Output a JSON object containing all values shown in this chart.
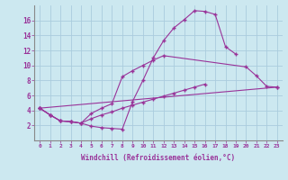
{
  "line1_x": [
    0,
    1,
    2,
    3,
    4,
    5,
    6,
    7,
    8,
    9,
    10,
    11,
    12,
    13,
    14,
    15,
    16,
    17,
    18,
    19,
    20,
    21,
    22,
    23
  ],
  "line1_y": [
    4.3,
    3.4,
    2.6,
    2.5,
    2.3,
    1.9,
    1.7,
    1.6,
    1.5,
    5.2,
    8.0,
    11.0,
    13.3,
    15.0,
    16.1,
    17.3,
    17.2,
    16.8,
    12.5,
    11.5,
    null,
    null,
    null,
    null
  ],
  "line2_x": [
    0,
    1,
    2,
    3,
    4,
    5,
    6,
    7,
    8,
    9,
    10,
    11,
    12,
    13,
    14,
    15,
    16,
    17,
    18,
    19,
    20,
    21,
    22,
    23
  ],
  "line2_y": [
    4.3,
    3.4,
    2.6,
    2.5,
    2.3,
    3.6,
    4.3,
    4.9,
    8.5,
    9.3,
    10.0,
    10.7,
    11.3,
    null,
    null,
    null,
    null,
    null,
    null,
    null,
    9.8,
    8.6,
    7.2,
    7.1
  ],
  "line3_x": [
    0,
    1,
    2,
    3,
    4,
    5,
    6,
    7,
    8,
    9,
    10,
    11,
    12,
    13,
    14,
    15,
    16,
    17,
    18,
    19,
    20,
    21,
    22,
    23
  ],
  "line3_y": [
    4.3,
    3.4,
    2.6,
    2.5,
    2.3,
    2.9,
    3.4,
    3.8,
    4.3,
    4.7,
    5.1,
    5.5,
    5.9,
    6.3,
    6.7,
    7.1,
    7.5,
    null,
    null,
    null,
    null,
    null,
    null,
    null
  ],
  "line4_x": [
    0,
    1,
    2,
    3,
    4,
    5,
    6,
    7,
    8,
    9,
    10,
    11,
    12,
    13,
    14,
    15,
    16,
    17,
    18,
    19,
    20,
    21,
    22,
    23
  ],
  "line4_y": [
    4.3,
    null,
    null,
    null,
    null,
    null,
    null,
    null,
    null,
    null,
    null,
    null,
    null,
    null,
    null,
    null,
    null,
    null,
    null,
    null,
    null,
    null,
    null,
    7.1
  ],
  "line_color": "#993399",
  "bg_color": "#cce8f0",
  "grid_color": "#aaccdd",
  "xlabel": "Windchill (Refroidissement éolien,°C)",
  "xlim": [
    -0.5,
    23.5
  ],
  "ylim": [
    0,
    18
  ],
  "yticks": [
    2,
    4,
    6,
    8,
    10,
    12,
    14,
    16
  ],
  "xticks": [
    0,
    1,
    2,
    3,
    4,
    5,
    6,
    7,
    8,
    9,
    10,
    11,
    12,
    13,
    14,
    15,
    16,
    17,
    18,
    19,
    20,
    21,
    22,
    23
  ]
}
